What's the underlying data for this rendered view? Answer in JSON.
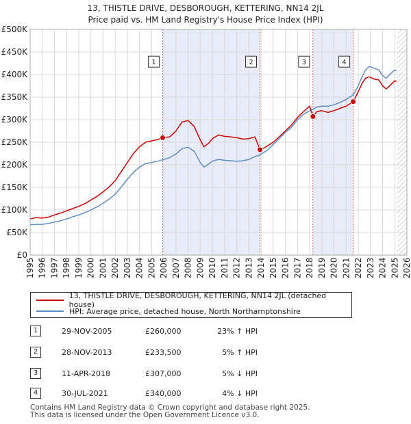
{
  "chart_data": {
    "type": "line",
    "title": "13, THISTLE DRIVE, DESBOROUGH, KETTERING, NN14 2JL",
    "subtitle": "Price paid vs. HM Land Registry's House Price Index (HPI)",
    "xlim": [
      1995,
      2026
    ],
    "ylim": [
      0,
      500000
    ],
    "x_ticks": [
      "1995",
      "1996",
      "1997",
      "1998",
      "1999",
      "2000",
      "2001",
      "2002",
      "2003",
      "2004",
      "2005",
      "2006",
      "2007",
      "2008",
      "2009",
      "2010",
      "2011",
      "2012",
      "2013",
      "2014",
      "2015",
      "2016",
      "2017",
      "2018",
      "2019",
      "2020",
      "2021",
      "2022",
      "2023",
      "2024",
      "2025",
      "2026"
    ],
    "y_ticks": [
      {
        "value": 0,
        "label": "£0"
      },
      {
        "value": 50000,
        "label": "£50K"
      },
      {
        "value": 100000,
        "label": "£100K"
      },
      {
        "value": 150000,
        "label": "£150K"
      },
      {
        "value": 200000,
        "label": "£200K"
      },
      {
        "value": 250000,
        "label": "£250K"
      },
      {
        "value": 300000,
        "label": "£300K"
      },
      {
        "value": 350000,
        "label": "£350K"
      },
      {
        "value": 400000,
        "label": "£400K"
      },
      {
        "value": 450000,
        "label": "£450K"
      },
      {
        "value": 500000,
        "label": "£500K"
      }
    ],
    "series": [
      {
        "name": "13, THISTLE DRIVE, DESBOROUGH, KETTERING, NN14 2JL (detached house)",
        "color": "#cc0000",
        "points": [
          [
            1995.0,
            80000
          ],
          [
            1995.5,
            83000
          ],
          [
            1996.0,
            82000
          ],
          [
            1996.5,
            84000
          ],
          [
            1997.0,
            89000
          ],
          [
            1997.5,
            93000
          ],
          [
            1998.0,
            98000
          ],
          [
            1998.5,
            103000
          ],
          [
            1999.0,
            108000
          ],
          [
            1999.5,
            114000
          ],
          [
            2000.0,
            122000
          ],
          [
            2000.5,
            130000
          ],
          [
            2001.0,
            140000
          ],
          [
            2001.5,
            151000
          ],
          [
            2002.0,
            165000
          ],
          [
            2002.5,
            185000
          ],
          [
            2003.0,
            205000
          ],
          [
            2003.5,
            225000
          ],
          [
            2004.0,
            240000
          ],
          [
            2004.5,
            250000
          ],
          [
            2005.0,
            253000
          ],
          [
            2005.5,
            256000
          ],
          [
            2005.91,
            260000
          ],
          [
            2006.5,
            262000
          ],
          [
            2007.0,
            275000
          ],
          [
            2007.5,
            295000
          ],
          [
            2008.0,
            298000
          ],
          [
            2008.5,
            285000
          ],
          [
            2009.0,
            255000
          ],
          [
            2009.3,
            240000
          ],
          [
            2009.7,
            248000
          ],
          [
            2010.0,
            258000
          ],
          [
            2010.5,
            266000
          ],
          [
            2011.0,
            263000
          ],
          [
            2011.5,
            262000
          ],
          [
            2012.0,
            260000
          ],
          [
            2012.5,
            257000
          ],
          [
            2013.0,
            258000
          ],
          [
            2013.5,
            262000
          ],
          [
            2013.91,
            233500
          ],
          [
            2014.3,
            238000
          ],
          [
            2015.0,
            250000
          ],
          [
            2015.5,
            262000
          ],
          [
            2016.0,
            275000
          ],
          [
            2016.5,
            288000
          ],
          [
            2017.0,
            305000
          ],
          [
            2017.5,
            318000
          ],
          [
            2018.0,
            330000
          ],
          [
            2018.27,
            307000
          ],
          [
            2018.6,
            318000
          ],
          [
            2019.0,
            320000
          ],
          [
            2019.5,
            316000
          ],
          [
            2020.0,
            320000
          ],
          [
            2020.5,
            325000
          ],
          [
            2021.0,
            330000
          ],
          [
            2021.58,
            340000
          ],
          [
            2022.0,
            362000
          ],
          [
            2022.3,
            380000
          ],
          [
            2022.6,
            392000
          ],
          [
            2022.9,
            395000
          ],
          [
            2023.3,
            390000
          ],
          [
            2023.7,
            388000
          ],
          [
            2024.0,
            375000
          ],
          [
            2024.3,
            368000
          ],
          [
            2024.7,
            378000
          ],
          [
            2025.0,
            386000
          ],
          [
            2025.15,
            385000
          ]
        ]
      },
      {
        "name": "HPI: Average price, detached house, North Northamptonshire",
        "color": "#5b8dc4",
        "points": [
          [
            1995.0,
            67000
          ],
          [
            1995.5,
            68000
          ],
          [
            1996.0,
            68000
          ],
          [
            1996.5,
            70000
          ],
          [
            1997.0,
            73000
          ],
          [
            1997.5,
            76000
          ],
          [
            1998.0,
            80000
          ],
          [
            1998.5,
            85000
          ],
          [
            1999.0,
            89000
          ],
          [
            1999.5,
            94000
          ],
          [
            2000.0,
            100000
          ],
          [
            2000.5,
            107000
          ],
          [
            2001.0,
            115000
          ],
          [
            2001.5,
            124000
          ],
          [
            2002.0,
            135000
          ],
          [
            2002.5,
            151000
          ],
          [
            2003.0,
            168000
          ],
          [
            2003.5,
            183000
          ],
          [
            2004.0,
            195000
          ],
          [
            2004.5,
            203000
          ],
          [
            2005.0,
            205000
          ],
          [
            2005.5,
            208000
          ],
          [
            2005.91,
            211000
          ],
          [
            2006.5,
            216000
          ],
          [
            2007.0,
            224000
          ],
          [
            2007.5,
            236000
          ],
          [
            2008.0,
            239000
          ],
          [
            2008.5,
            230000
          ],
          [
            2009.0,
            205000
          ],
          [
            2009.3,
            195000
          ],
          [
            2009.7,
            202000
          ],
          [
            2010.0,
            208000
          ],
          [
            2010.5,
            212000
          ],
          [
            2011.0,
            210000
          ],
          [
            2011.5,
            209000
          ],
          [
            2012.0,
            208000
          ],
          [
            2012.5,
            209000
          ],
          [
            2013.0,
            212000
          ],
          [
            2013.5,
            218000
          ],
          [
            2013.91,
            222000
          ],
          [
            2014.5,
            232000
          ],
          [
            2015.0,
            245000
          ],
          [
            2015.5,
            258000
          ],
          [
            2016.0,
            272000
          ],
          [
            2016.5,
            283000
          ],
          [
            2017.0,
            300000
          ],
          [
            2017.5,
            312000
          ],
          [
            2018.0,
            320000
          ],
          [
            2018.27,
            323000
          ],
          [
            2018.6,
            328000
          ],
          [
            2019.0,
            330000
          ],
          [
            2019.5,
            330000
          ],
          [
            2020.0,
            333000
          ],
          [
            2020.5,
            338000
          ],
          [
            2021.0,
            345000
          ],
          [
            2021.58,
            355000
          ],
          [
            2022.0,
            375000
          ],
          [
            2022.3,
            395000
          ],
          [
            2022.6,
            410000
          ],
          [
            2022.9,
            418000
          ],
          [
            2023.3,
            414000
          ],
          [
            2023.7,
            410000
          ],
          [
            2024.0,
            398000
          ],
          [
            2024.3,
            392000
          ],
          [
            2024.7,
            403000
          ],
          [
            2025.0,
            410000
          ],
          [
            2025.15,
            408000
          ]
        ]
      }
    ],
    "sales": [
      {
        "id": "1",
        "x": 2005.91,
        "price": 260000,
        "date": "29-NOV-2005",
        "price_label": "£260,000",
        "hpi_label": "23% ↑ HPI"
      },
      {
        "id": "2",
        "x": 2013.91,
        "price": 233500,
        "date": "28-NOV-2013",
        "price_label": "£233,500",
        "hpi_label": "5% ↑ HPI"
      },
      {
        "id": "3",
        "x": 2018.27,
        "price": 307000,
        "date": "11-APR-2018",
        "price_label": "£307,000",
        "hpi_label": "5% ↓ HPI"
      },
      {
        "id": "4",
        "x": 2021.58,
        "price": 340000,
        "date": "30-JUL-2021",
        "price_label": "£340,000",
        "hpi_label": "4% ↓ HPI"
      }
    ],
    "shaded_periods": [
      [
        2005.91,
        2013.91
      ],
      [
        2018.27,
        2021.58
      ]
    ],
    "future_hatch_from": 2025.2
  },
  "legend": {
    "property_label": "13, THISTLE DRIVE, DESBOROUGH, KETTERING, NN14 2JL (detached house)",
    "hpi_label": "HPI: Average price, detached house, North Northamptonshire"
  },
  "footer": {
    "line1": "Contains HM Land Registry data © Crown copyright and database right 2025.",
    "line2": "This data is licensed under the Open Government Licence v3.0."
  }
}
